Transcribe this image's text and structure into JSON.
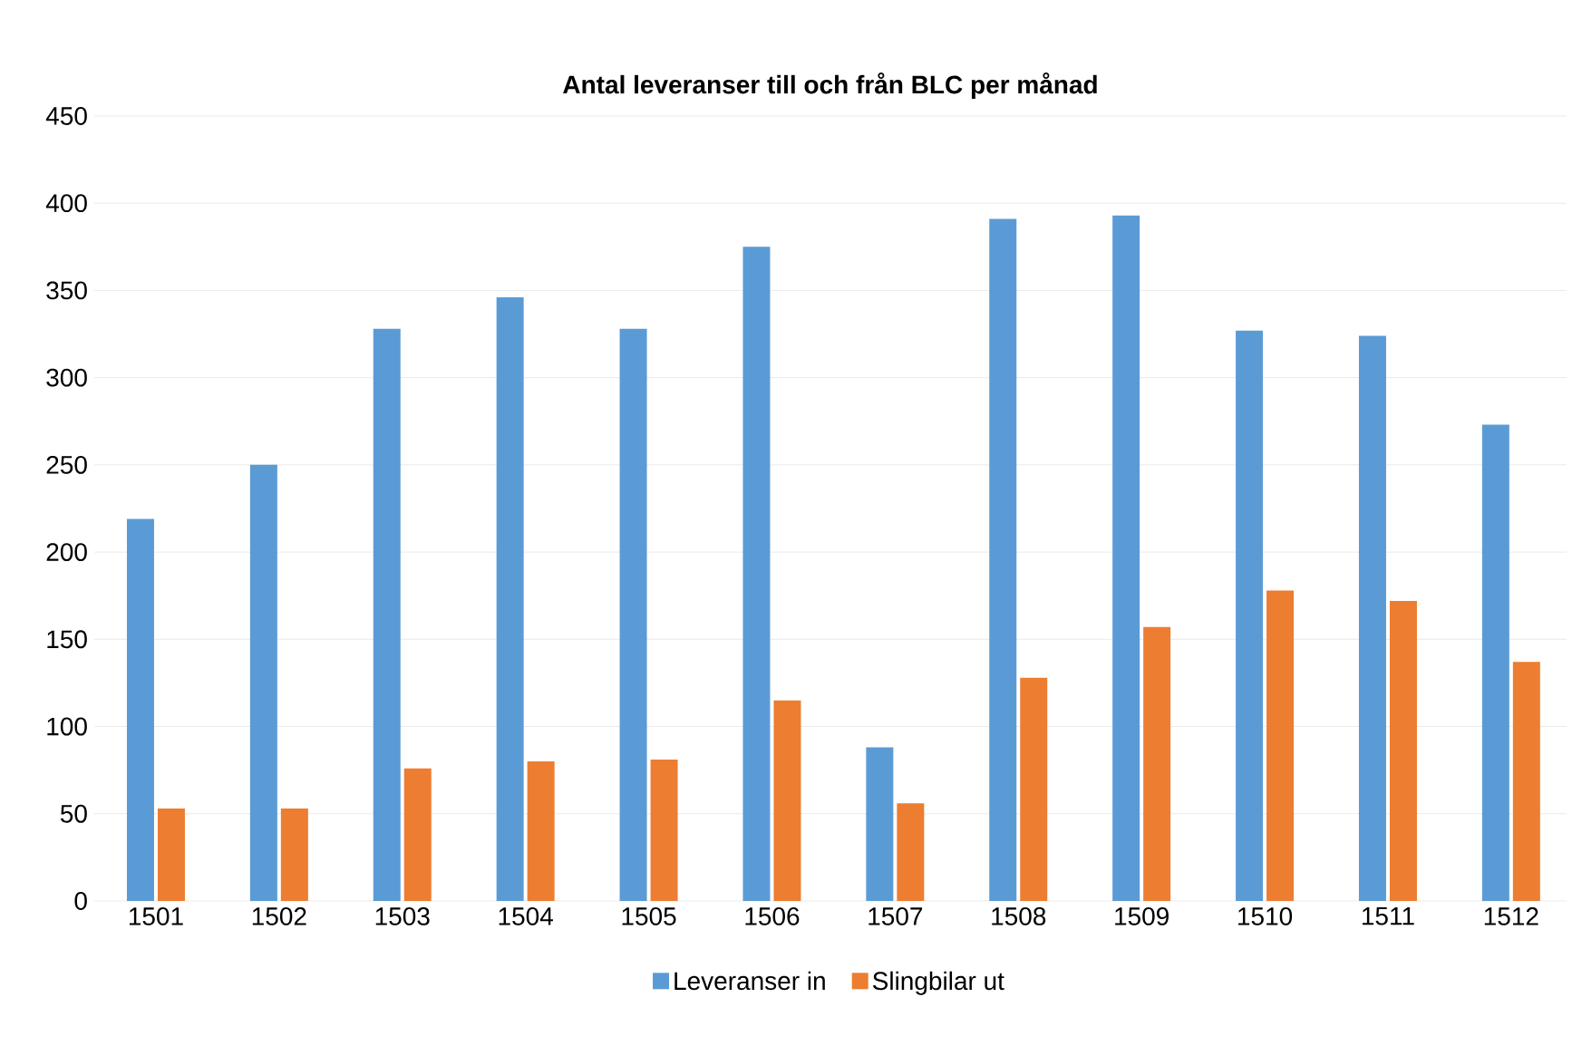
{
  "chart_data": {
    "type": "bar",
    "title": "Antal leveranser till och från BLC per månad",
    "categories": [
      "1501",
      "1502",
      "1503",
      "1504",
      "1505",
      "1506",
      "1507",
      "1508",
      "1509",
      "1510",
      "1511",
      "1512"
    ],
    "series": [
      {
        "name": "Leveranser in",
        "color": "#5b9bd5",
        "values": [
          219,
          250,
          328,
          346,
          328,
          375,
          88,
          391,
          393,
          327,
          324,
          273
        ]
      },
      {
        "name": "Slingbilar ut",
        "color": "#ed7d31",
        "values": [
          53,
          53,
          76,
          80,
          81,
          115,
          56,
          128,
          157,
          178,
          172,
          137
        ]
      }
    ],
    "ylim": [
      0,
      450
    ],
    "yticks": [
      0,
      50,
      100,
      150,
      200,
      250,
      300,
      350,
      400,
      450
    ],
    "grid": "y",
    "legend": "bottom"
  }
}
